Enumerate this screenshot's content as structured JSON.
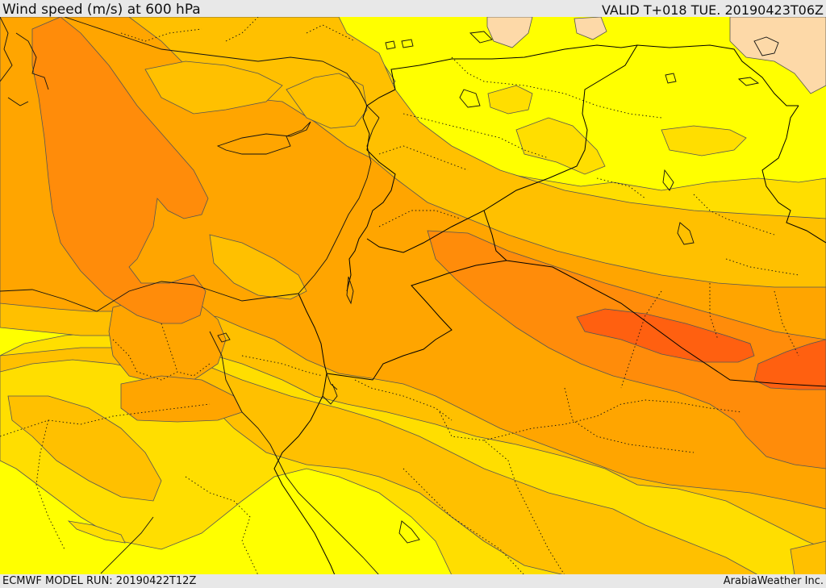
{
  "header": {
    "title": "Wind speed (m/s) at 600 hPa",
    "valid": "VALID T+018 TUE. 20190423T06Z"
  },
  "footer": {
    "model_run": "ECMWF MODEL RUN: 20190422T12Z",
    "credit": "ArabiaWeather Inc."
  },
  "map": {
    "field": "wind-speed",
    "pressure_level_hpa": 600,
    "fill_colors": {
      "lowest": "#ffff00",
      "low": "#ffde00",
      "moderate": "#ffc000",
      "elevated": "#ffa500",
      "high": "#ff8c0a",
      "highest": "#ff6010",
      "weak_land": "#fdd9a8"
    },
    "border_color": "#000000",
    "contour_color": "#555555"
  }
}
